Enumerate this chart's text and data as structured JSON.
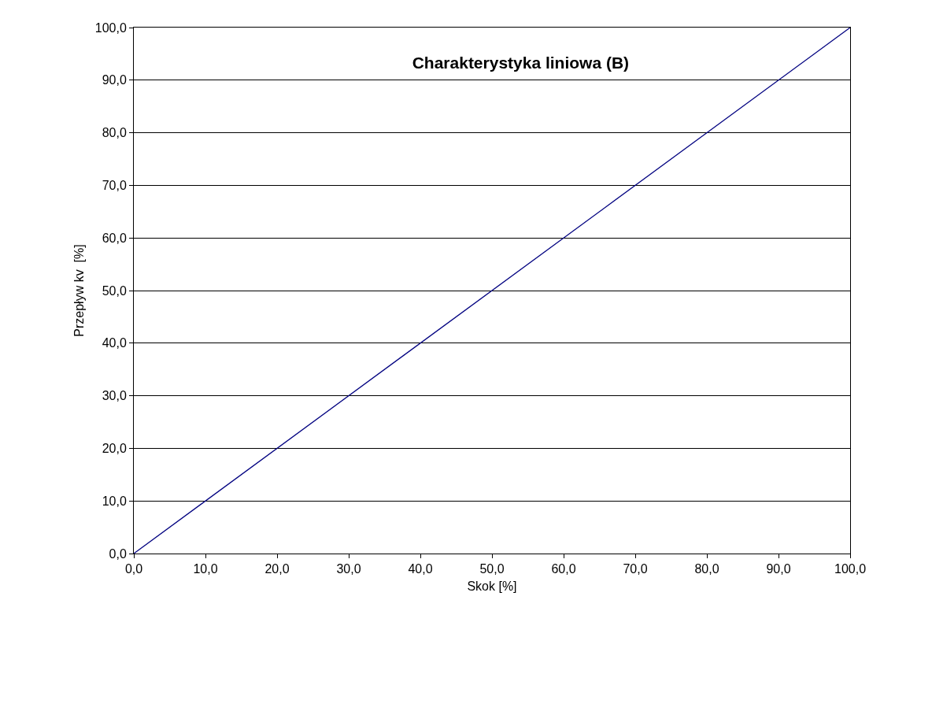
{
  "chart_data": {
    "type": "line",
    "title": "Charakterystyka liniowa (B)",
    "xlabel": "Skok [%]",
    "ylabel": "Przepływ kv  [%]",
    "x": [
      0,
      100
    ],
    "series": [
      {
        "color": "#000080",
        "values": [
          0,
          100
        ]
      }
    ],
    "xlim": [
      0,
      100
    ],
    "ylim": [
      0,
      100
    ],
    "xticks": [
      {
        "value": 0,
        "label": "0,0"
      },
      {
        "value": 10,
        "label": "10,0"
      },
      {
        "value": 20,
        "label": "20,0"
      },
      {
        "value": 30,
        "label": "30,0"
      },
      {
        "value": 40,
        "label": "40,0"
      },
      {
        "value": 50,
        "label": "50,0"
      },
      {
        "value": 60,
        "label": "60,0"
      },
      {
        "value": 70,
        "label": "70,0"
      },
      {
        "value": 80,
        "label": "80,0"
      },
      {
        "value": 90,
        "label": "90,0"
      },
      {
        "value": 100,
        "label": "100,0"
      }
    ],
    "yticks": [
      {
        "value": 0,
        "label": "0,0"
      },
      {
        "value": 10,
        "label": "10,0"
      },
      {
        "value": 20,
        "label": "20,0"
      },
      {
        "value": 30,
        "label": "30,0"
      },
      {
        "value": 40,
        "label": "40,0"
      },
      {
        "value": 50,
        "label": "50,0"
      },
      {
        "value": 60,
        "label": "60,0"
      },
      {
        "value": 70,
        "label": "70,0"
      },
      {
        "value": 80,
        "label": "80,0"
      },
      {
        "value": 90,
        "label": "90,0"
      },
      {
        "value": 100,
        "label": "100,0"
      }
    ],
    "grid": "y",
    "legend": false,
    "marker": "none",
    "line_style": "solid"
  }
}
